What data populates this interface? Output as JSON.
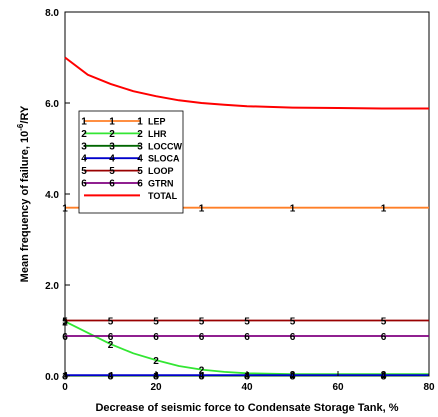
{
  "chart_data": {
    "type": "line",
    "xlabel": "Decrease of seismic force to Condensate Storage Tank, %",
    "ylabel": "Mean frequency of failure, 10",
    "ylabel_sup": "-6",
    "ylabel_unit": "/RY",
    "xlim": [
      0,
      80
    ],
    "ylim": [
      0,
      8
    ],
    "xticks": [
      "0",
      "20",
      "40",
      "60",
      "80"
    ],
    "yticks": [
      "0.0",
      "2.0",
      "4.0",
      "6.0",
      "8.0"
    ],
    "grid": false,
    "legend_position": "upper-left inside plot",
    "series": [
      {
        "name": "LEP",
        "marker": "1",
        "color": "#ff7f27",
        "x": [
          0,
          10,
          20,
          30,
          40,
          50,
          70,
          80
        ],
        "y": [
          3.7,
          3.7,
          3.7,
          3.7,
          3.7,
          3.7,
          3.7,
          3.7
        ],
        "marker_x": [
          0,
          30,
          50,
          70
        ]
      },
      {
        "name": "LHR",
        "marker": "2",
        "color": "#33e633",
        "x": [
          0,
          5,
          10,
          15,
          20,
          25,
          30,
          35,
          40,
          50,
          70,
          80
        ],
        "y": [
          1.2,
          0.95,
          0.7,
          0.5,
          0.35,
          0.22,
          0.14,
          0.09,
          0.06,
          0.04,
          0.04,
          0.04
        ],
        "marker_x": [
          0,
          10,
          20,
          30,
          50,
          70
        ]
      },
      {
        "name": "LOCCW",
        "marker": "3",
        "color": "#006600",
        "x": [
          0,
          80
        ],
        "y": [
          0.01,
          0.01
        ],
        "marker_x": [
          0,
          10,
          20,
          30,
          40,
          50,
          70
        ]
      },
      {
        "name": "SLOCA",
        "marker": "4",
        "color": "#0000cc",
        "x": [
          0,
          80
        ],
        "y": [
          0.02,
          0.02
        ],
        "marker_x": [
          0,
          10,
          20,
          30,
          40,
          50,
          70
        ]
      },
      {
        "name": "LOOP",
        "marker": "5",
        "color": "#990000",
        "x": [
          0,
          80
        ],
        "y": [
          1.22,
          1.22
        ],
        "marker_x": [
          0,
          10,
          20,
          30,
          40,
          50,
          70
        ]
      },
      {
        "name": "GTRN",
        "marker": "6",
        "color": "#800080",
        "x": [
          0,
          80
        ],
        "y": [
          0.88,
          0.88
        ],
        "marker_x": [
          0,
          10,
          20,
          30,
          40,
          50,
          70
        ]
      },
      {
        "name": "TOTAL",
        "marker": "",
        "color": "#ff0000",
        "x": [
          0,
          5,
          10,
          15,
          20,
          25,
          30,
          35,
          40,
          50,
          60,
          70,
          80
        ],
        "y": [
          7.0,
          6.62,
          6.42,
          6.26,
          6.15,
          6.06,
          6.0,
          5.96,
          5.93,
          5.9,
          5.89,
          5.88,
          5.88
        ],
        "marker_x": []
      }
    ]
  }
}
